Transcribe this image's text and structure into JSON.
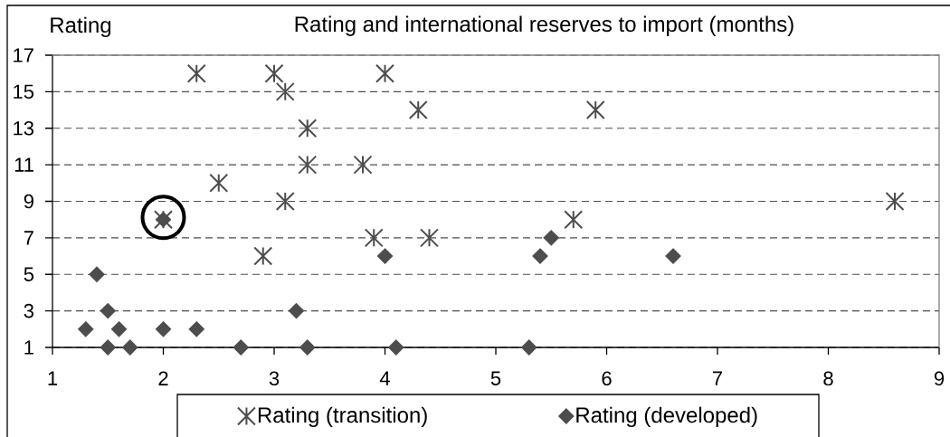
{
  "chart_data": {
    "type": "scatter",
    "title": "Rating and international reserves to import (months)",
    "ylabel": "Rating",
    "xlim": [
      1,
      9
    ],
    "xticks": [
      1,
      2,
      3,
      4,
      5,
      6,
      7,
      8,
      9
    ],
    "ylim": [
      1,
      17
    ],
    "yticks": [
      1,
      3,
      5,
      7,
      9,
      11,
      13,
      15,
      17
    ],
    "grid": "y",
    "legend": "bottom",
    "series": [
      {
        "name": "Rating (transition)",
        "color": "#4d4d4d",
        "marker": "cross",
        "x": [
          2.0,
          2.3,
          2.5,
          2.9,
          3.0,
          3.1,
          3.1,
          3.3,
          3.3,
          3.8,
          3.9,
          4.0,
          4.3,
          4.4,
          5.7,
          5.9,
          8.6
        ],
        "values": [
          8,
          16,
          10,
          6,
          16,
          15,
          9,
          13,
          11,
          11,
          7,
          16,
          14,
          7,
          8,
          14,
          9
        ]
      },
      {
        "name": "Rating (developed)",
        "color": "#4d4d4d",
        "marker": "diamond",
        "x": [
          1.3,
          1.4,
          1.5,
          1.5,
          1.6,
          1.7,
          2.0,
          2.0,
          2.3,
          2.7,
          3.2,
          3.3,
          4.0,
          4.1,
          5.3,
          5.4,
          5.5,
          6.6
        ],
        "values": [
          2,
          5,
          3,
          1,
          2,
          1,
          2,
          8,
          2,
          1,
          3,
          1,
          6,
          1,
          1,
          6,
          7,
          6
        ]
      }
    ]
  }
}
